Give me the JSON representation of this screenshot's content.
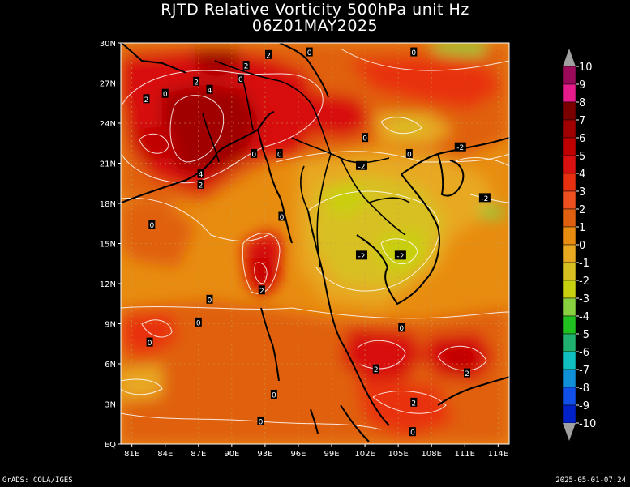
{
  "header": {
    "title": "RJTD Relative Vorticity 500hPa unit Hz",
    "subtitle": "06Z01MAY2025"
  },
  "footer": {
    "credit": "GrADS: COLA/IGES",
    "timestamp": "2025-05-01-07:24"
  },
  "axes": {
    "x_ticks": [
      "81E",
      "84E",
      "87E",
      "90E",
      "93E",
      "96E",
      "99E",
      "102E",
      "105E",
      "108E",
      "111E",
      "114E"
    ],
    "y_ticks": [
      "EQ",
      "3N",
      "6N",
      "9N",
      "12N",
      "15N",
      "18N",
      "21N",
      "24N",
      "27N",
      "30N"
    ]
  },
  "colorbar": {
    "labels": [
      "10",
      "9",
      "8",
      "7",
      "6",
      "5",
      "4",
      "3",
      "2",
      "1",
      "0",
      "-1",
      "-2",
      "-3",
      "-4",
      "-5",
      "-6",
      "-7",
      "-8",
      "-9",
      "-10"
    ],
    "colors": [
      "#9b0a5a",
      "#e61a8a",
      "#7a0000",
      "#a00000",
      "#c00000",
      "#d81010",
      "#e83010",
      "#f05020",
      "#e06010",
      "#e88c10",
      "#e8a820",
      "#d8c020",
      "#c8d010",
      "#88d040",
      "#20c020",
      "#20b070",
      "#10c0c0",
      "#1090d8",
      "#1050e8",
      "#0020c8"
    ]
  },
  "contour_labels": [
    {
      "text": "2",
      "lon": 82.3,
      "lat": 25.8
    },
    {
      "text": "0",
      "lon": 84,
      "lat": 26.2
    },
    {
      "text": "2",
      "lon": 86.8,
      "lat": 27.1
    },
    {
      "text": "4",
      "lon": 88,
      "lat": 26.5
    },
    {
      "text": "2",
      "lon": 91.3,
      "lat": 28.3
    },
    {
      "text": "0",
      "lon": 90.8,
      "lat": 27.3
    },
    {
      "text": "2",
      "lon": 93.3,
      "lat": 29.1
    },
    {
      "text": "0",
      "lon": 97,
      "lat": 29.3
    },
    {
      "text": "0",
      "lon": 106.4,
      "lat": 29.3
    },
    {
      "text": "0",
      "lon": 92,
      "lat": 21.7
    },
    {
      "text": "0",
      "lon": 94.3,
      "lat": 21.7
    },
    {
      "text": "0",
      "lon": 102,
      "lat": 22.9
    },
    {
      "text": "0",
      "lon": 106,
      "lat": 21.7
    },
    {
      "text": "-2",
      "lon": 110.6,
      "lat": 22.2
    },
    {
      "text": "-2",
      "lon": 101.7,
      "lat": 20.8
    },
    {
      "text": "-2",
      "lon": 112.8,
      "lat": 18.4
    },
    {
      "text": "4",
      "lon": 87.2,
      "lat": 20.2
    },
    {
      "text": "2",
      "lon": 87.2,
      "lat": 19.4
    },
    {
      "text": "0",
      "lon": 82.8,
      "lat": 16.4
    },
    {
      "text": "0",
      "lon": 94.5,
      "lat": 17
    },
    {
      "text": "-2",
      "lon": 101.7,
      "lat": 14.1
    },
    {
      "text": "-2",
      "lon": 105.2,
      "lat": 14.1
    },
    {
      "text": "2",
      "lon": 92.7,
      "lat": 11.5
    },
    {
      "text": "0",
      "lon": 88,
      "lat": 10.8
    },
    {
      "text": "0",
      "lon": 87,
      "lat": 9.1
    },
    {
      "text": "0",
      "lon": 105.3,
      "lat": 8.7
    },
    {
      "text": "0",
      "lon": 82.6,
      "lat": 7.6
    },
    {
      "text": "2",
      "lon": 103,
      "lat": 5.6
    },
    {
      "text": "2",
      "lon": 111.2,
      "lat": 5.3
    },
    {
      "text": "0",
      "lon": 93.8,
      "lat": 3.7
    },
    {
      "text": "2",
      "lon": 106.4,
      "lat": 3.1
    },
    {
      "text": "0",
      "lon": 92.6,
      "lat": 1.7
    },
    {
      "text": "0",
      "lon": 106.3,
      "lat": 0.9
    }
  ]
}
